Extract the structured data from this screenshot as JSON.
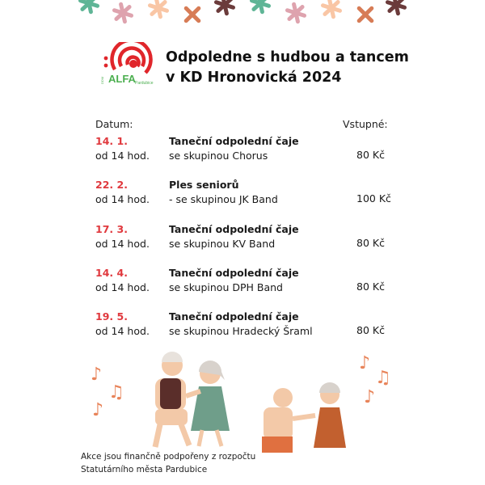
{
  "logo": {
    "text": "ALFA",
    "prefix": "DDM",
    "suffix": "Pardubice",
    "color": "#e0262b",
    "text_color": "#4caf50"
  },
  "title": {
    "line1": "Odpoledne s hudbou a tancem",
    "line2": "v KD Hronovická 2024"
  },
  "headers": {
    "date": "Datum:",
    "price": "Vstupné:"
  },
  "events": [
    {
      "date": "14. 1.",
      "time": "od 14 hod.",
      "title": "Taneční odpolední čaje",
      "band": "se skupinou Chorus",
      "price": "80 Kč"
    },
    {
      "date": "22. 2.",
      "time": "od 14 hod.",
      "title": "Ples seniorů",
      "band": "- se skupinou JK Band",
      "price": "100 Kč"
    },
    {
      "date": "17. 3.",
      "time": "od 14 hod.",
      "title": "Taneční odpolední čaje",
      "band": "se skupinou KV Band",
      "price": "80 Kč"
    },
    {
      "date": "14. 4.",
      "time": "od 14 hod.",
      "title": "Taneční odpolední čaje",
      "band": "se skupinou DPH Band",
      "price": "80 Kč"
    },
    {
      "date": "19. 5.",
      "time": "od 14 hod.",
      "title": "Taneční odpolední čaje",
      "band": "se skupinou Hradecký Šraml",
      "price": "80 Kč"
    }
  ],
  "footer": {
    "line1": "Akce jsou finančně podpořeny z rozpočtu",
    "line2": "Statutárního města Pardubice"
  },
  "colors": {
    "accent": "#e0393e",
    "star_green": "#5fb596",
    "star_pink": "#dea3ae",
    "star_peach": "#f9c6a5",
    "star_orange": "#d77c56",
    "star_brown": "#6b3b3b"
  }
}
